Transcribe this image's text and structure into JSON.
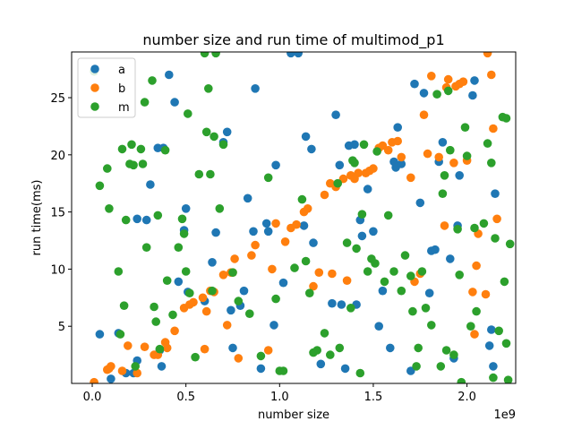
{
  "chart_data": {
    "type": "scatter",
    "title": "number size and run time of multimod_p1",
    "xlabel": "number size",
    "ylabel": "run time(ms)",
    "x_multiplier_label": "1e9",
    "xlim": [
      -0.11,
      2.26
    ],
    "ylim": [
      0,
      29
    ],
    "x_ticks": [
      0.0,
      0.5,
      1.0,
      1.5,
      2.0
    ],
    "x_tick_labels": [
      "0.0",
      "0.5",
      "1.0",
      "1.5",
      "2.0"
    ],
    "y_ticks": [
      5,
      10,
      15,
      20,
      25
    ],
    "y_tick_labels": [
      "5",
      "10",
      "15",
      "20",
      "25"
    ],
    "legend_position": "upper-left",
    "grid": false,
    "series": [
      {
        "name": "a",
        "color": "#1f77b4",
        "points": [
          [
            0.04,
            4.3
          ],
          [
            0.1,
            0.4
          ],
          [
            0.14,
            4.4
          ],
          [
            0.18,
            0.9
          ],
          [
            0.22,
            0.9
          ],
          [
            0.24,
            14.4
          ],
          [
            0.24,
            2.0
          ],
          [
            0.29,
            14.3
          ],
          [
            0.31,
            17.4
          ],
          [
            0.35,
            20.6
          ],
          [
            0.36,
            2.9
          ],
          [
            0.37,
            1.5
          ],
          [
            0.38,
            20.6
          ],
          [
            0.41,
            27.0
          ],
          [
            0.44,
            24.6
          ],
          [
            0.46,
            8.9
          ],
          [
            0.49,
            13.4
          ],
          [
            0.5,
            15.3
          ],
          [
            0.51,
            8.0
          ],
          [
            0.6,
            7.2
          ],
          [
            0.64,
            10.6
          ],
          [
            0.66,
            13.2
          ],
          [
            0.7,
            21.1
          ],
          [
            0.72,
            22.0
          ],
          [
            0.74,
            6.4
          ],
          [
            0.75,
            3.1
          ],
          [
            0.79,
            6.8
          ],
          [
            0.81,
            8.1
          ],
          [
            0.83,
            16.2
          ],
          [
            0.86,
            13.3
          ],
          [
            0.87,
            25.8
          ],
          [
            0.9,
            1.3
          ],
          [
            0.93,
            14.0
          ],
          [
            0.94,
            13.3
          ],
          [
            0.97,
            5.1
          ],
          [
            0.98,
            19.1
          ],
          [
            1.02,
            8.8
          ],
          [
            1.06,
            28.9
          ],
          [
            1.1,
            28.9
          ],
          [
            1.13,
            13.8
          ],
          [
            1.14,
            21.6
          ],
          [
            1.17,
            20.5
          ],
          [
            1.18,
            12.3
          ],
          [
            1.22,
            1.7
          ],
          [
            1.28,
            7.0
          ],
          [
            1.3,
            23.5
          ],
          [
            1.32,
            19.1
          ],
          [
            1.33,
            6.9
          ],
          [
            1.35,
            1.3
          ],
          [
            1.37,
            20.8
          ],
          [
            1.4,
            20.9
          ],
          [
            1.41,
            6.9
          ],
          [
            1.43,
            14.3
          ],
          [
            1.44,
            12.9
          ],
          [
            1.47,
            17.0
          ],
          [
            1.5,
            13.3
          ],
          [
            1.53,
            5.0
          ],
          [
            1.55,
            8.1
          ],
          [
            1.59,
            3.1
          ],
          [
            1.61,
            19.4
          ],
          [
            1.62,
            18.9
          ],
          [
            1.63,
            22.4
          ],
          [
            1.65,
            19.2
          ],
          [
            1.7,
            1.1
          ],
          [
            1.72,
            26.2
          ],
          [
            1.75,
            15.8
          ],
          [
            1.77,
            25.4
          ],
          [
            1.8,
            7.9
          ],
          [
            1.81,
            11.6
          ],
          [
            1.83,
            11.7
          ],
          [
            1.85,
            19.4
          ],
          [
            1.87,
            21.1
          ],
          [
            1.91,
            10.9
          ],
          [
            1.93,
            2.2
          ],
          [
            1.95,
            13.8
          ],
          [
            1.96,
            18.2
          ],
          [
            2.03,
            25.2
          ],
          [
            2.04,
            26.5
          ],
          [
            2.12,
            3.3
          ],
          [
            2.13,
            4.7
          ],
          [
            2.14,
            1.5
          ],
          [
            2.15,
            16.6
          ]
        ]
      },
      {
        "name": "b",
        "color": "#ff7f0e",
        "points": [
          [
            0.01,
            0.1
          ],
          [
            0.08,
            1.2
          ],
          [
            0.09,
            1.3
          ],
          [
            0.1,
            1.5
          ],
          [
            0.16,
            1.1
          ],
          [
            0.19,
            3.3
          ],
          [
            0.24,
            0.9
          ],
          [
            0.28,
            3.2
          ],
          [
            0.33,
            2.5
          ],
          [
            0.35,
            2.5
          ],
          [
            0.39,
            3.6
          ],
          [
            0.4,
            3.1
          ],
          [
            0.44,
            4.6
          ],
          [
            0.49,
            6.6
          ],
          [
            0.52,
            6.9
          ],
          [
            0.54,
            7.1
          ],
          [
            0.59,
            7.5
          ],
          [
            0.61,
            6.3
          ],
          [
            0.6,
            3.0
          ],
          [
            0.63,
            8.1
          ],
          [
            0.65,
            8.0
          ],
          [
            0.7,
            9.5
          ],
          [
            0.72,
            5.1
          ],
          [
            0.74,
            9.7
          ],
          [
            0.75,
            9.7
          ],
          [
            0.76,
            10.9
          ],
          [
            0.78,
            2.2
          ],
          [
            0.85,
            11.2
          ],
          [
            0.87,
            12.1
          ],
          [
            0.94,
            2.9
          ],
          [
            0.96,
            10.0
          ],
          [
            0.98,
            14.0
          ],
          [
            1.03,
            12.4
          ],
          [
            1.06,
            13.6
          ],
          [
            1.09,
            13.9
          ],
          [
            1.13,
            15.0
          ],
          [
            1.15,
            15.3
          ],
          [
            1.18,
            8.5
          ],
          [
            1.21,
            9.7
          ],
          [
            1.24,
            16.5
          ],
          [
            1.27,
            17.5
          ],
          [
            1.28,
            9.6
          ],
          [
            1.3,
            17.2
          ],
          [
            1.34,
            17.9
          ],
          [
            1.36,
            9.0
          ],
          [
            1.38,
            18.2
          ],
          [
            1.4,
            17.9
          ],
          [
            1.42,
            18.4
          ],
          [
            1.46,
            18.4
          ],
          [
            1.48,
            18.6
          ],
          [
            1.5,
            18.8
          ],
          [
            1.53,
            20.6
          ],
          [
            1.55,
            20.8
          ],
          [
            1.58,
            20.4
          ],
          [
            1.6,
            21.1
          ],
          [
            1.63,
            21.2
          ],
          [
            1.65,
            19.8
          ],
          [
            1.7,
            18.0
          ],
          [
            1.72,
            8.9
          ],
          [
            1.75,
            9.6
          ],
          [
            1.77,
            23.5
          ],
          [
            1.79,
            20.1
          ],
          [
            1.81,
            26.9
          ],
          [
            1.85,
            19.8
          ],
          [
            1.88,
            13.8
          ],
          [
            1.89,
            25.9
          ],
          [
            1.9,
            26.6
          ],
          [
            1.93,
            19.3
          ],
          [
            1.94,
            26.0
          ],
          [
            1.96,
            26.2
          ],
          [
            1.98,
            26.4
          ],
          [
            2.0,
            19.5
          ],
          [
            2.03,
            8.0
          ],
          [
            2.04,
            4.3
          ],
          [
            2.05,
            10.3
          ],
          [
            2.06,
            13.1
          ],
          [
            2.1,
            7.8
          ],
          [
            2.11,
            28.9
          ],
          [
            2.13,
            27.0
          ],
          [
            2.14,
            22.3
          ],
          [
            2.16,
            14.4
          ]
        ]
      },
      {
        "name": "m",
        "color": "#2ca02c",
        "points": [
          [
            0.01,
            27.3
          ],
          [
            0.04,
            17.3
          ],
          [
            0.08,
            18.8
          ],
          [
            0.09,
            15.3
          ],
          [
            0.14,
            9.8
          ],
          [
            0.15,
            4.3
          ],
          [
            0.16,
            20.5
          ],
          [
            0.17,
            6.8
          ],
          [
            0.18,
            14.3
          ],
          [
            0.2,
            19.2
          ],
          [
            0.21,
            20.9
          ],
          [
            0.22,
            19.1
          ],
          [
            0.23,
            1.5
          ],
          [
            0.26,
            20.5
          ],
          [
            0.27,
            19.2
          ],
          [
            0.28,
            24.6
          ],
          [
            0.29,
            11.9
          ],
          [
            0.32,
            26.5
          ],
          [
            0.33,
            6.7
          ],
          [
            0.34,
            5.4
          ],
          [
            0.35,
            14.7
          ],
          [
            0.36,
            3.0
          ],
          [
            0.39,
            20.4
          ],
          [
            0.4,
            9.0
          ],
          [
            0.43,
            6.0
          ],
          [
            0.46,
            11.9
          ],
          [
            0.48,
            14.4
          ],
          [
            0.49,
            13.1
          ],
          [
            0.5,
            9.8
          ],
          [
            0.51,
            23.6
          ],
          [
            0.52,
            7.9
          ],
          [
            0.55,
            2.3
          ],
          [
            0.57,
            18.3
          ],
          [
            0.6,
            28.9
          ],
          [
            0.61,
            22.0
          ],
          [
            0.62,
            25.8
          ],
          [
            0.63,
            18.3
          ],
          [
            0.64,
            8.1
          ],
          [
            0.65,
            21.6
          ],
          [
            0.66,
            28.9
          ],
          [
            0.68,
            15.3
          ],
          [
            0.7,
            20.9
          ],
          [
            0.75,
            9.7
          ],
          [
            0.78,
            7.2
          ],
          [
            0.84,
            6.1
          ],
          [
            0.9,
            2.4
          ],
          [
            0.94,
            18.0
          ],
          [
            0.98,
            7.4
          ],
          [
            1.0,
            1.1
          ],
          [
            1.02,
            1.1
          ],
          [
            1.08,
            10.1
          ],
          [
            1.12,
            16.1
          ],
          [
            1.14,
            10.7
          ],
          [
            1.16,
            7.9
          ],
          [
            1.18,
            2.7
          ],
          [
            1.2,
            2.9
          ],
          [
            1.24,
            4.4
          ],
          [
            1.27,
            2.5
          ],
          [
            1.31,
            17.5
          ],
          [
            1.32,
            3.1
          ],
          [
            1.36,
            12.3
          ],
          [
            1.38,
            6.6
          ],
          [
            1.39,
            19.5
          ],
          [
            1.4,
            19.3
          ],
          [
            1.41,
            11.8
          ],
          [
            1.43,
            0.9
          ],
          [
            1.44,
            14.8
          ],
          [
            1.45,
            20.9
          ],
          [
            1.47,
            9.8
          ],
          [
            1.49,
            10.9
          ],
          [
            1.51,
            10.5
          ],
          [
            1.52,
            20.3
          ],
          [
            1.56,
            8.9
          ],
          [
            1.58,
            14.7
          ],
          [
            1.61,
            9.8
          ],
          [
            1.65,
            8.1
          ],
          [
            1.67,
            11.2
          ],
          [
            1.7,
            9.4
          ],
          [
            1.71,
            6.3
          ],
          [
            1.73,
            1.5
          ],
          [
            1.74,
            3.1
          ],
          [
            1.76,
            9.8
          ],
          [
            1.78,
            6.6
          ],
          [
            1.81,
            5.1
          ],
          [
            1.84,
            25.3
          ],
          [
            1.86,
            1.5
          ],
          [
            1.87,
            16.6
          ],
          [
            1.88,
            18.2
          ],
          [
            1.89,
            2.9
          ],
          [
            1.9,
            25.6
          ],
          [
            1.91,
            20.4
          ],
          [
            1.93,
            2.5
          ],
          [
            1.95,
            13.5
          ],
          [
            1.96,
            9.5
          ],
          [
            1.97,
            0.1
          ],
          [
            1.99,
            22.4
          ],
          [
            2.0,
            19.9
          ],
          [
            2.02,
            5.0
          ],
          [
            2.04,
            13.6
          ],
          [
            2.05,
            6.3
          ],
          [
            2.09,
            14.0
          ],
          [
            2.11,
            21.0
          ],
          [
            2.13,
            19.3
          ],
          [
            2.14,
            0.5
          ],
          [
            2.15,
            12.7
          ],
          [
            2.17,
            4.6
          ],
          [
            2.19,
            23.3
          ],
          [
            2.2,
            8.9
          ],
          [
            2.21,
            3.5
          ],
          [
            2.21,
            23.2
          ],
          [
            2.22,
            0.3
          ],
          [
            2.23,
            12.2
          ]
        ]
      }
    ]
  }
}
